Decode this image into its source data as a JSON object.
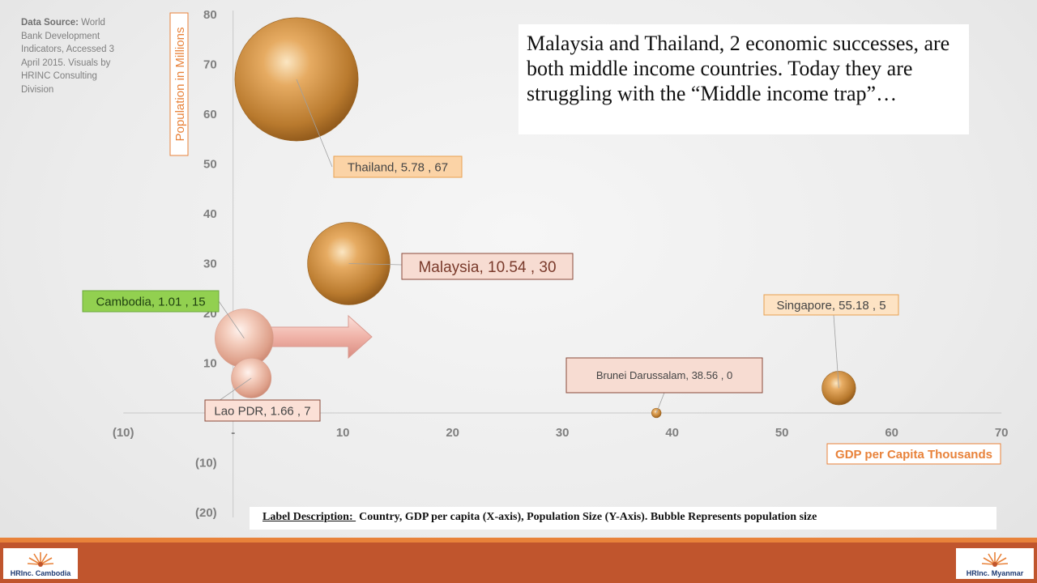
{
  "source_note": {
    "label": "Data Source:",
    "text": " World Bank Development Indicators, Accessed 3 April 2015.  Visuals by HRINC Consulting Division"
  },
  "callout_text": "Malaysia and Thailand, 2 economic successes, are both middle income countries. Today they are struggling with the “Middle income trap”…",
  "label_description": {
    "label": "Label Description: ",
    "text": "Country, GDP per capita (X-axis), Population Size (Y-Axis).  Bubble Represents population size"
  },
  "logos": {
    "left": "HRInc. Cambodia",
    "right": "HRInc. Myanmar"
  },
  "colors": {
    "accent_orange": "#e8823a",
    "footer": "#c0552d",
    "bubble_gold": "#c98a3e",
    "bubble_pink": "#f2c2ac",
    "cambodia_label": "#92d050",
    "arrow": "#f0b8b0"
  },
  "chart_data": {
    "type": "bubble",
    "title": "",
    "xlabel": "GDP per Capita Thousands",
    "ylabel": "Population in Millions",
    "xlim": [
      -10,
      70
    ],
    "ylim": [
      -20,
      80
    ],
    "x_ticks": [
      -10,
      0,
      10,
      20,
      30,
      40,
      50,
      60,
      70
    ],
    "x_tick_labels": [
      "(10)",
      "-",
      "10",
      "20",
      "30",
      "40",
      "50",
      "60",
      "70"
    ],
    "y_ticks": [
      -20,
      -10,
      10,
      20,
      30,
      40,
      50,
      60,
      70,
      80
    ],
    "y_tick_labels": [
      "(20)",
      "(10)",
      "10",
      "20",
      "30",
      "40",
      "50",
      "60",
      "70",
      "80"
    ],
    "grid": false,
    "points": [
      {
        "name": "Thailand",
        "x": 5.78,
        "y": 67,
        "size": 67,
        "label": "Thailand,  5.78 ,  67",
        "style": "gold"
      },
      {
        "name": "Malaysia",
        "x": 10.54,
        "y": 30,
        "size": 30,
        "label": "Malaysia,  10.54 ,  30",
        "style": "gold"
      },
      {
        "name": "Cambodia",
        "x": 1.01,
        "y": 15,
        "size": 15,
        "label": "Cambodia,  1.01 ,  15",
        "style": "pink"
      },
      {
        "name": "Lao PDR",
        "x": 1.66,
        "y": 7,
        "size": 7,
        "label": "Lao PDR,  1.66 ,  7",
        "style": "pink"
      },
      {
        "name": "Brunei Darussalam",
        "x": 38.56,
        "y": 0,
        "size": 0.4,
        "label": "Brunei Darussalam,  38.56 ,  0",
        "style": "gold"
      },
      {
        "name": "Singapore",
        "x": 55.18,
        "y": 5,
        "size": 5,
        "label": "Singapore,  55.18 ,  5",
        "style": "gold"
      }
    ]
  }
}
